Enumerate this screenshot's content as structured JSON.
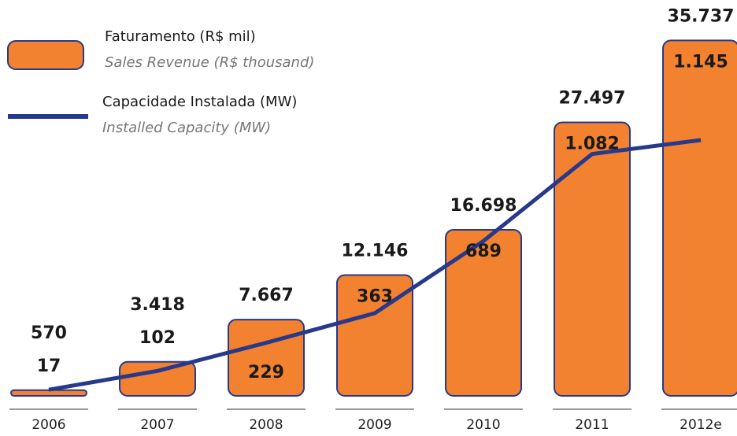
{
  "chart_data": {
    "type": "bar_line",
    "categories": [
      "2006",
      "2007",
      "2008",
      "2009",
      "2010",
      "2011",
      "2012e"
    ],
    "series": [
      {
        "name": "Faturamento (R$ mil)",
        "name_en": "Sales Revenue (R$ thousand)",
        "type": "bar",
        "color": "#f28130",
        "values": [
          570,
          3418,
          7667,
          12146,
          16698,
          27497,
          35737
        ],
        "value_labels": [
          "570",
          "3.418",
          "7.667",
          "12.146",
          "16.698",
          "27.497",
          "35.737"
        ]
      },
      {
        "name": "Capacidade Instalada (MW)",
        "name_en": "Installed Capacity (MW)",
        "type": "line",
        "axis": "y2",
        "color": "#27398b",
        "values": [
          17,
          102,
          229,
          363,
          689,
          1082,
          1145
        ],
        "value_labels": [
          "17",
          "102",
          "229",
          "363",
          "689",
          "1.082",
          "1.145"
        ]
      }
    ],
    "ylim": [
      0,
      36000
    ],
    "y2lim": [
      0,
      1600
    ]
  }
}
